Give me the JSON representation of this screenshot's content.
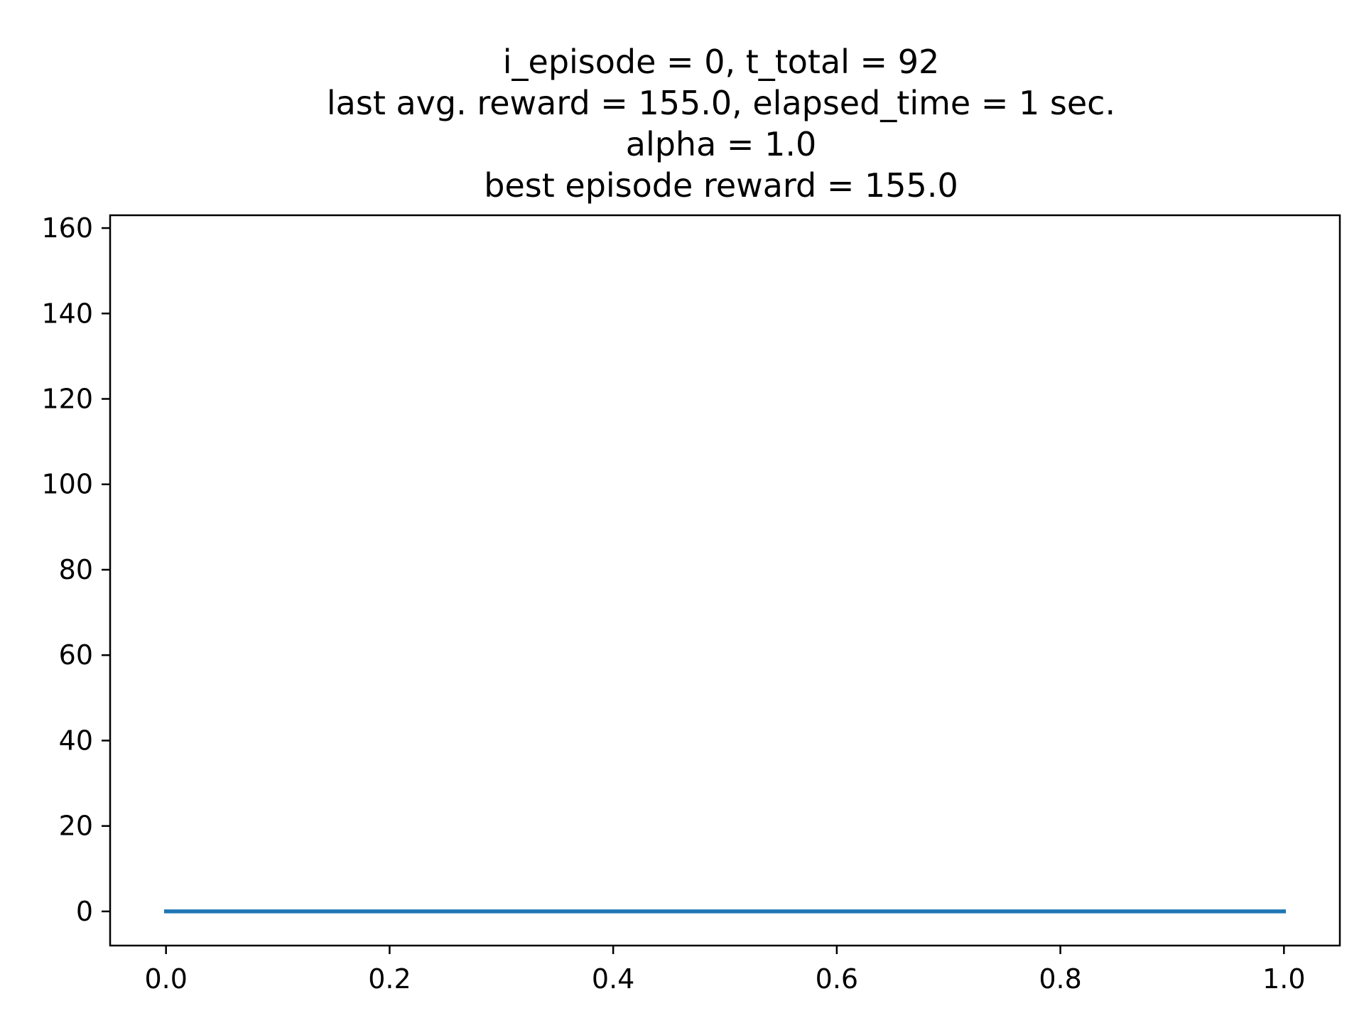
{
  "title_lines": [
    "i_episode = 0, t_total = 92",
    "last avg. reward = 155.0, elapsed_time = 1 sec.",
    "alpha = 1.0",
    "best episode reward = 155.0"
  ],
  "chart_data": {
    "type": "line",
    "title": "i_episode = 0, t_total = 92\nlast avg. reward = 155.0, elapsed_time = 1 sec.\nalpha = 1.0\nbest episode reward = 155.0",
    "xlabel": "",
    "ylabel": "",
    "xlim": [
      -0.05,
      1.05
    ],
    "ylim": [
      -8,
      163
    ],
    "xticks": [
      0.0,
      0.2,
      0.4,
      0.6,
      0.8,
      1.0
    ],
    "xtick_labels": [
      "0.0",
      "0.2",
      "0.4",
      "0.6",
      "0.8",
      "1.0"
    ],
    "yticks": [
      0,
      20,
      40,
      60,
      80,
      100,
      120,
      140,
      160
    ],
    "ytick_labels": [
      "0",
      "20",
      "40",
      "60",
      "80",
      "100",
      "120",
      "140",
      "160"
    ],
    "grid": false,
    "series": [
      {
        "color": "#1f77b4",
        "x": [
          0.0,
          1.0
        ],
        "y": [
          0,
          0
        ]
      }
    ]
  }
}
